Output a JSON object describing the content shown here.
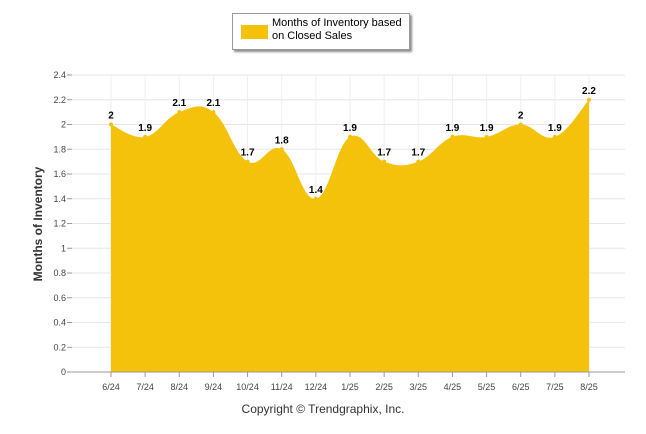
{
  "chart_data": {
    "type": "area",
    "title": "",
    "xlabel": "",
    "ylabel": "Months of Inventory",
    "categories": [
      "6/24",
      "7/24",
      "8/24",
      "9/24",
      "10/24",
      "11/24",
      "12/24",
      "1/25",
      "2/25",
      "3/25",
      "4/25",
      "5/25",
      "6/25",
      "7/25",
      "8/25"
    ],
    "series": [
      {
        "name": "Months of Inventory based on Closed Sales",
        "values": [
          2,
          1.9,
          2.1,
          2.1,
          1.7,
          1.8,
          1.4,
          1.9,
          1.7,
          1.7,
          1.9,
          1.9,
          2,
          1.9,
          2.2
        ],
        "color": "#f5c20b"
      }
    ],
    "ylim": [
      0,
      2.4
    ],
    "yticks": [
      "0",
      "0.2",
      "0.4",
      "0.6",
      "0.8",
      "1",
      "1.2",
      "1.4",
      "1.6",
      "1.8",
      "2",
      "2.2",
      "2.4"
    ],
    "grid": true,
    "legend": "top-center"
  },
  "legend": {
    "label": "Months of Inventory based on Closed Sales"
  },
  "footer": {
    "copyright": "Copyright © Trendgraphix, Inc."
  }
}
